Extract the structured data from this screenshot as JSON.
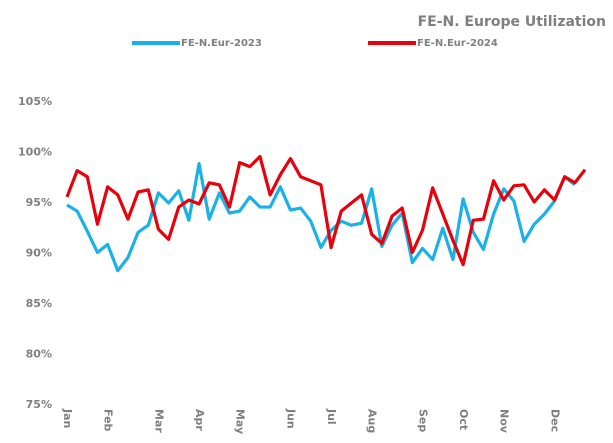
{
  "chart_data": {
    "type": "line",
    "title": "FE-N. Europe Utilization",
    "categories": [
      "Jan",
      null,
      null,
      null,
      "Feb",
      null,
      null,
      null,
      null,
      "Mar",
      null,
      null,
      null,
      "Apr",
      null,
      null,
      null,
      "May",
      null,
      null,
      null,
      null,
      "Jun",
      null,
      null,
      null,
      "Jul",
      null,
      null,
      null,
      "Aug",
      null,
      null,
      null,
      null,
      "Sep",
      null,
      null,
      null,
      "Oct",
      null,
      null,
      null,
      "Nov",
      null,
      null,
      null,
      null,
      "Dec",
      null,
      null,
      null
    ],
    "series": [
      {
        "name": "FE-N.Eur-2023",
        "color": "#1ab0e8",
        "values": [
          94.8,
          94.2,
          92.2,
          90.1,
          90.9,
          88.3,
          89.6,
          92.1,
          92.8,
          96.0,
          95.0,
          96.2,
          93.3,
          98.9,
          93.4,
          96.0,
          94.0,
          94.2,
          95.6,
          94.6,
          94.6,
          96.6,
          94.3,
          94.5,
          93.2,
          90.6,
          92.3,
          93.2,
          92.8,
          93.0,
          96.4,
          90.7,
          92.8,
          94.0,
          89.1,
          90.5,
          89.4,
          92.5,
          89.4,
          95.4,
          92.1,
          90.4,
          93.9,
          96.4,
          95.2,
          91.2,
          92.9,
          93.9,
          95.2,
          97.6,
          96.8,
          null
        ]
      },
      {
        "name": "FE-N.Eur-2024",
        "color": "#e8000b",
        "values": [
          95.6,
          98.2,
          97.6,
          92.9,
          96.6,
          95.8,
          93.4,
          96.1,
          96.3,
          92.4,
          91.4,
          94.6,
          95.3,
          94.9,
          97.0,
          96.8,
          94.6,
          99.0,
          98.6,
          99.6,
          95.8,
          97.8,
          99.4,
          97.6,
          97.2,
          96.8,
          90.6,
          94.2,
          95.0,
          95.8,
          91.9,
          91.0,
          93.7,
          94.5,
          90.1,
          92.3,
          96.5,
          93.9,
          91.3,
          88.9,
          93.3,
          93.4,
          97.2,
          95.3,
          96.7,
          96.8,
          95.1,
          96.3,
          95.3,
          97.6,
          97.0,
          98.3
        ]
      }
    ],
    "ylim": [
      75,
      105
    ],
    "yticks": [
      {
        "value": 75,
        "label": "75%"
      },
      {
        "value": 80,
        "label": "80%"
      },
      {
        "value": 85,
        "label": "85%"
      },
      {
        "value": 90,
        "label": "90%"
      },
      {
        "value": 95,
        "label": "95%"
      },
      {
        "value": 100,
        "label": "100%"
      },
      {
        "value": 105,
        "label": "105%"
      }
    ],
    "legend": "top"
  }
}
